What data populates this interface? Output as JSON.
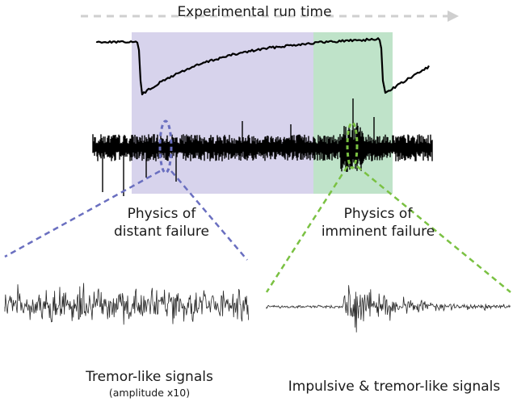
{
  "header": {
    "title": "Experimental run time",
    "arrow_color": "#cfcfcf"
  },
  "regions": {
    "distant": {
      "label_line1": "Physics of",
      "label_line2": "distant failure",
      "color": "#d7d3ec",
      "marker_color": "#6a6fc0"
    },
    "imminent": {
      "label_line1": "Physics of",
      "label_line2": "imminent failure",
      "color": "#bfe3c9",
      "marker_color": "#7ac142"
    }
  },
  "signals": {
    "left": {
      "label": "Tremor-like signals",
      "sublabel": "(amplitude x10)"
    },
    "right": {
      "label": "Impulsive & tremor-like signals"
    }
  },
  "colors": {
    "trace": "#000000",
    "zoom_trace": "#2a2a2a"
  }
}
